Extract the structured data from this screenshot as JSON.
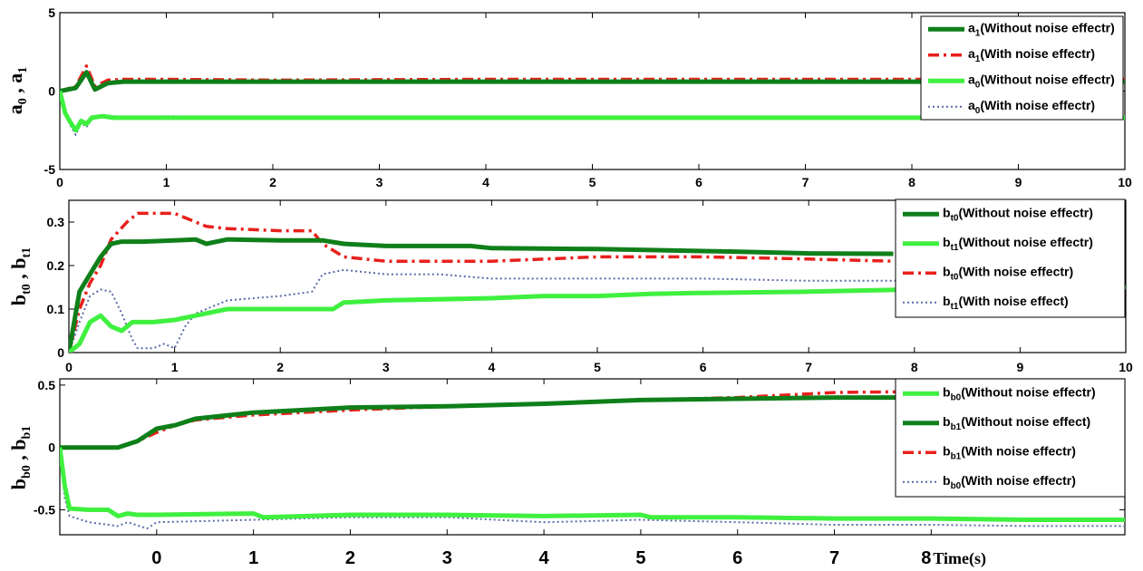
{
  "colors": {
    "dark_green": "#0f7f1a",
    "light_green": "#3ff03f",
    "red": "#e8201c",
    "dotted_blue": "#5a6aa8"
  },
  "chart_data": [
    {
      "type": "line",
      "ylabel": {
        "main": "a",
        "sub1": "0",
        "sep": " , ",
        "main2": "a",
        "sub2": "1"
      },
      "xlim": [
        0,
        10
      ],
      "ylim": [
        -5,
        5
      ],
      "xticks": [
        "0",
        "1",
        "2",
        "3",
        "4",
        "5",
        "6",
        "7",
        "8",
        "9",
        "10"
      ],
      "yticks": [
        "-5",
        "0",
        "5"
      ],
      "legend": [
        {
          "pre": "a",
          "sub": "1",
          "text": "(Without noise effectr)",
          "style": "dark_solid"
        },
        {
          "pre": "a",
          "sub": "1",
          "text": "(With noise effectr)",
          "style": "red_dashdot"
        },
        {
          "pre": "a",
          "sub": "0",
          "text": "(Without noise effectr)",
          "style": "light_solid"
        },
        {
          "pre": "a",
          "sub": "0",
          "text": "(With noise effectr)",
          "style": "blue_dotted"
        }
      ],
      "series": [
        {
          "style": "red_dashdot",
          "x": [
            0,
            0.15,
            0.25,
            0.33,
            0.45,
            0.6,
            1,
            2,
            4,
            6,
            8,
            10
          ],
          "y": [
            0,
            0.3,
            1.6,
            0.3,
            0.7,
            0.75,
            0.75,
            0.7,
            0.75,
            0.75,
            0.75,
            0.75
          ]
        },
        {
          "style": "dark_solid",
          "x": [
            0,
            0.15,
            0.25,
            0.33,
            0.45,
            0.6,
            1,
            2,
            4,
            6,
            8,
            10
          ],
          "y": [
            0,
            0.2,
            1.2,
            0.1,
            0.5,
            0.6,
            0.6,
            0.6,
            0.6,
            0.6,
            0.6,
            0.6
          ]
        },
        {
          "style": "blue_dotted",
          "x": [
            0,
            0.05,
            0.1,
            0.15,
            0.2,
            0.25,
            0.3,
            0.4,
            0.5,
            0.7,
            1,
            2,
            4,
            6,
            8,
            10
          ],
          "y": [
            0,
            -1.5,
            -2.2,
            -2.8,
            -2.0,
            -2.3,
            -1.8,
            -1.5,
            -1.6,
            -1.7,
            -1.6,
            -1.7,
            -1.7,
            -1.7,
            -1.7,
            -1.7
          ]
        },
        {
          "style": "light_solid",
          "x": [
            0,
            0.05,
            0.1,
            0.15,
            0.2,
            0.25,
            0.3,
            0.4,
            0.5,
            0.7,
            1,
            2,
            4,
            6,
            8,
            10
          ],
          "y": [
            0,
            -1.4,
            -2.0,
            -2.5,
            -1.9,
            -2.1,
            -1.7,
            -1.6,
            -1.7,
            -1.7,
            -1.7,
            -1.7,
            -1.7,
            -1.7,
            -1.7,
            -1.7
          ]
        }
      ]
    },
    {
      "type": "line",
      "ylabel": {
        "main": "b",
        "sub1": "t0",
        "sep": " , ",
        "main2": "b",
        "sub2": "t1"
      },
      "xlim": [
        0,
        10
      ],
      "ylim": [
        0,
        0.35
      ],
      "xticks": [
        "0",
        "1",
        "2",
        "3",
        "4",
        "5",
        "6",
        "7",
        "8",
        "9",
        "10"
      ],
      "yticks": [
        "0",
        "0.1",
        "0.2",
        "0.3"
      ],
      "legend": [
        {
          "pre": "b",
          "sub": "t0",
          "text": "(Without noise effectr)",
          "style": "dark_solid"
        },
        {
          "pre": "b",
          "sub": "t1",
          "text": "(Without noise effectr)",
          "style": "light_solid"
        },
        {
          "pre": "b",
          "sub": "t0",
          "text": "(With noise effectr)",
          "style": "red_dashdot"
        },
        {
          "pre": "b",
          "sub": "t1",
          "text": "(With noise effect)",
          "style": "blue_dotted"
        }
      ],
      "series": [
        {
          "style": "blue_dotted",
          "x": [
            0,
            0.1,
            0.2,
            0.3,
            0.4,
            0.5,
            0.6,
            0.65,
            0.8,
            0.9,
            1.0,
            1.1,
            1.2,
            1.5,
            2.0,
            2.3,
            2.4,
            2.6,
            3.0,
            3.5,
            4.0,
            4.5,
            5,
            6,
            7,
            7.8,
            8.0
          ],
          "y": [
            0,
            0.07,
            0.13,
            0.145,
            0.14,
            0.09,
            0.03,
            0.01,
            0.01,
            0.02,
            0.01,
            0.06,
            0.09,
            0.12,
            0.13,
            0.14,
            0.18,
            0.19,
            0.18,
            0.18,
            0.17,
            0.17,
            0.17,
            0.17,
            0.165,
            0.165,
            0.165
          ]
        },
        {
          "style": "red_dashdot",
          "x": [
            0,
            0.1,
            0.2,
            0.3,
            0.4,
            0.55,
            0.65,
            0.8,
            1.0,
            1.1,
            1.3,
            1.5,
            2.0,
            2.3,
            2.4,
            2.6,
            3.0,
            4.0,
            5.0,
            6.0,
            7.0,
            7.8
          ],
          "y": [
            0,
            0.1,
            0.16,
            0.2,
            0.26,
            0.3,
            0.32,
            0.32,
            0.32,
            0.31,
            0.29,
            0.285,
            0.28,
            0.28,
            0.25,
            0.22,
            0.21,
            0.21,
            0.22,
            0.22,
            0.215,
            0.21
          ]
        },
        {
          "style": "dark_solid",
          "x": [
            0,
            0.1,
            0.2,
            0.3,
            0.4,
            0.5,
            0.7,
            1.0,
            1.2,
            1.3,
            1.4,
            1.5,
            2.0,
            2.4,
            2.6,
            3.0,
            3.8,
            4.0,
            5.0,
            6.3,
            7.0,
            7.8
          ],
          "y": [
            0,
            0.14,
            0.18,
            0.22,
            0.25,
            0.255,
            0.255,
            0.258,
            0.26,
            0.25,
            0.255,
            0.26,
            0.258,
            0.258,
            0.25,
            0.245,
            0.245,
            0.24,
            0.238,
            0.232,
            0.228,
            0.227
          ]
        },
        {
          "style": "light_solid",
          "x": [
            0,
            0.1,
            0.2,
            0.3,
            0.4,
            0.5,
            0.6,
            0.8,
            1.0,
            1.2,
            1.5,
            2.0,
            2.5,
            2.6,
            3.0,
            4.0,
            4.5,
            5.0,
            5.5,
            6.0,
            7.0,
            8.0,
            10.0
          ],
          "y": [
            0,
            0.02,
            0.07,
            0.085,
            0.06,
            0.05,
            0.07,
            0.07,
            0.075,
            0.085,
            0.1,
            0.1,
            0.1,
            0.115,
            0.12,
            0.125,
            0.13,
            0.13,
            0.135,
            0.137,
            0.14,
            0.145,
            0.15
          ]
        }
      ]
    },
    {
      "type": "line",
      "ylabel": {
        "main": "b",
        "sub1": "b0",
        "sep": " , ",
        "main2": "b",
        "sub2": "b1"
      },
      "xlim": [
        -1,
        10
      ],
      "ylim": [
        -0.7,
        0.55
      ],
      "xticks": [
        "0",
        "1",
        "2",
        "3",
        "4",
        "5",
        "6",
        "7",
        "8"
      ],
      "x_tick_values": [
        0,
        1,
        2,
        3,
        4,
        5,
        6,
        7,
        8
      ],
      "xlabel": "Time(s)",
      "yticks": [
        "-0.5",
        "0",
        "0.5"
      ],
      "ytick_values": [
        -0.5,
        0,
        0.5
      ],
      "legend": [
        {
          "pre": "b",
          "sub": "b0",
          "text": "(Without noise effectr)",
          "style": "light_solid"
        },
        {
          "pre": "b",
          "sub": "b1",
          "text": "(Without noise effect)",
          "style": "dark_solid"
        },
        {
          "pre": "b",
          "sub": "b1",
          "text": "(With noise effectr)",
          "style": "red_dashdot"
        },
        {
          "pre": "b",
          "sub": "b0",
          "text": "(With noise effectr)",
          "style": "blue_dotted"
        }
      ],
      "series": [
        {
          "style": "red_dashdot",
          "x": [
            -1,
            -0.6,
            -0.4,
            -0.2,
            0.0,
            0.2,
            0.4,
            1.0,
            2.0,
            3.0,
            4.0,
            5.0,
            6.0,
            7.0,
            8.0,
            9.0,
            10.0
          ],
          "y": [
            0,
            0,
            0,
            0.05,
            0.12,
            0.18,
            0.22,
            0.26,
            0.3,
            0.33,
            0.35,
            0.38,
            0.4,
            0.44,
            0.45,
            0.46,
            0.47
          ]
        },
        {
          "style": "dark_solid",
          "x": [
            -1,
            -0.6,
            -0.4,
            -0.2,
            0.0,
            0.2,
            0.4,
            1.0,
            2.0,
            3.0,
            4.0,
            5.0,
            6.0,
            7.0,
            8.0,
            9.0,
            10.0
          ],
          "y": [
            0,
            0,
            0,
            0.05,
            0.15,
            0.18,
            0.23,
            0.28,
            0.32,
            0.33,
            0.35,
            0.38,
            0.39,
            0.4,
            0.4,
            0.41,
            0.42
          ]
        },
        {
          "style": "blue_dotted",
          "x": [
            -1,
            -0.95,
            -0.9,
            -0.7,
            -0.4,
            -0.3,
            -0.1,
            0.0,
            1.0,
            2.0,
            3.0,
            4.0,
            5.0,
            6.0,
            7.0,
            8.0,
            9.0,
            10.0
          ],
          "y": [
            0,
            -0.4,
            -0.55,
            -0.6,
            -0.63,
            -0.6,
            -0.65,
            -0.6,
            -0.58,
            -0.56,
            -0.56,
            -0.6,
            -0.58,
            -0.6,
            -0.62,
            -0.62,
            -0.63,
            -0.63
          ]
        },
        {
          "style": "light_solid",
          "x": [
            -1,
            -0.95,
            -0.9,
            -0.7,
            -0.5,
            -0.4,
            -0.3,
            -0.2,
            0.0,
            1.0,
            1.1,
            2.0,
            3.0,
            4.0,
            5.0,
            5.1,
            6.0,
            7.0,
            8.0,
            9.0,
            10.0
          ],
          "y": [
            0,
            -0.3,
            -0.49,
            -0.5,
            -0.5,
            -0.55,
            -0.53,
            -0.54,
            -0.54,
            -0.53,
            -0.56,
            -0.54,
            -0.54,
            -0.55,
            -0.54,
            -0.56,
            -0.56,
            -0.57,
            -0.57,
            -0.58,
            -0.58
          ]
        }
      ]
    }
  ]
}
